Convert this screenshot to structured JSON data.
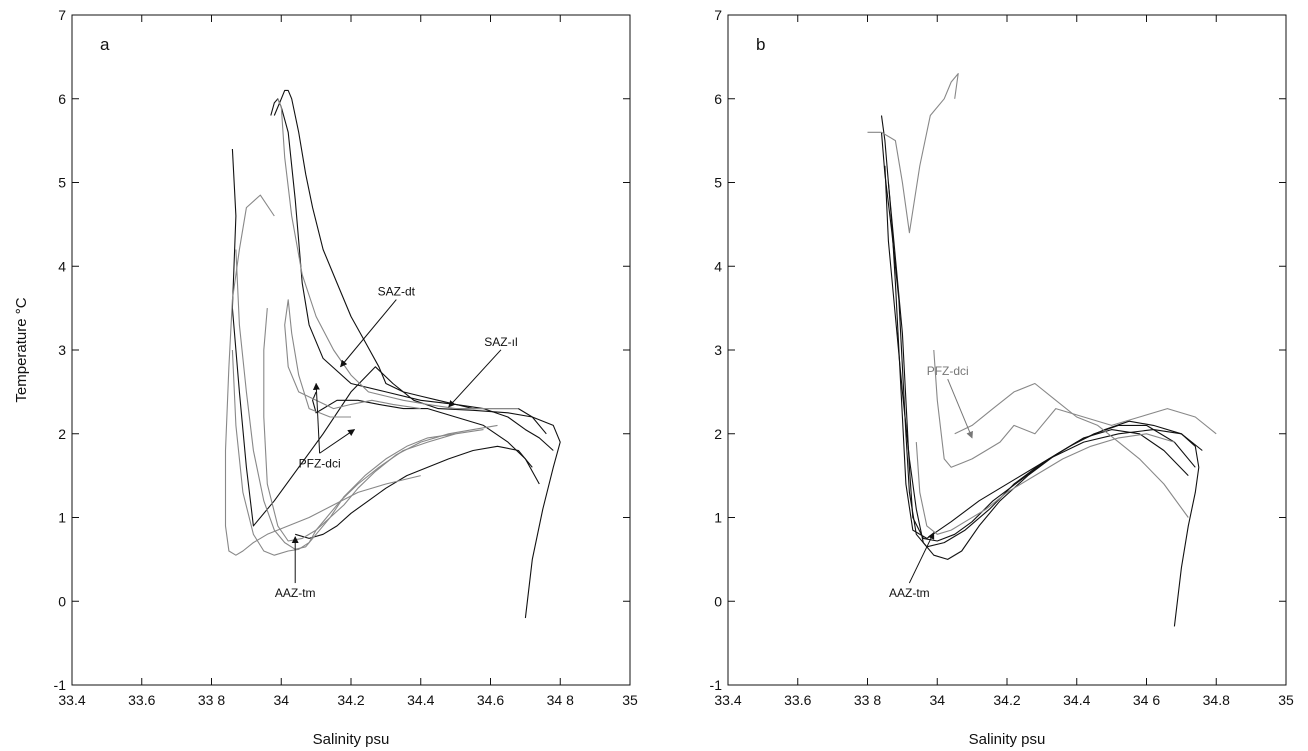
{
  "chart_data": [
    {
      "type": "line",
      "panel": "a",
      "xlabel": "Salinity psu",
      "ylabel": "Temperature °C",
      "xlim": [
        33.4,
        35
      ],
      "ylim": [
        -1,
        7
      ],
      "x_ticks": [
        33.4,
        33.6,
        33.8,
        34,
        34.2,
        34.4,
        34.6,
        34.8,
        35
      ],
      "x_tick_labels": [
        "33.4",
        "33.6",
        "33 8",
        "34",
        "34.2",
        "34.4",
        "34.6",
        "34 8",
        "35"
      ],
      "y_ticks": [
        -1,
        0,
        1,
        2,
        3,
        4,
        5,
        6,
        7
      ],
      "y_tick_labels": [
        "-1",
        "0",
        "1",
        "2",
        "3",
        "4",
        "5",
        "6",
        "7"
      ],
      "grid": false,
      "series": [
        {
          "color": "#111111",
          "x": [
            34.7,
            34.72,
            34.75,
            34.78,
            34.8,
            34.78,
            34.72,
            34.65,
            34.55,
            34.45,
            34.38,
            34.32,
            34.27,
            34.2,
            34.12,
            34.05,
            33.98,
            33.92,
            33.9,
            33.88,
            33.86,
            33.87,
            33.86
          ],
          "y": [
            -0.2,
            0.5,
            1.1,
            1.6,
            1.9,
            2.1,
            2.2,
            2.25,
            2.28,
            2.3,
            2.4,
            2.6,
            2.8,
            2.5,
            2.0,
            1.6,
            1.2,
            0.9,
            1.6,
            2.5,
            3.5,
            4.6,
            5.4
          ]
        },
        {
          "color": "#111111",
          "x": [
            34.76,
            34.72,
            34.68,
            34.62,
            34.55,
            34.5,
            34.45,
            34.4,
            34.35,
            34.3,
            34.28,
            34.24,
            34.2,
            34.16,
            34.12,
            34.09,
            34.07,
            34.05,
            34.03,
            34.02,
            34.01,
            34.0,
            33.99,
            33.98
          ],
          "y": [
            2.0,
            2.2,
            2.3,
            2.3,
            2.3,
            2.35,
            2.4,
            2.45,
            2.5,
            2.6,
            2.8,
            3.1,
            3.4,
            3.8,
            4.2,
            4.7,
            5.1,
            5.6,
            6.0,
            6.1,
            6.1,
            6.0,
            5.9,
            5.8
          ]
        },
        {
          "color": "#111111",
          "x": [
            34.78,
            34.74,
            34.7,
            34.65,
            34.58,
            34.5,
            34.4,
            34.3,
            34.2,
            34.12,
            34.08,
            34.06,
            34.05,
            34.04,
            34.03,
            34.02,
            34.0,
            33.99,
            33.98,
            33.97
          ],
          "y": [
            1.8,
            1.95,
            2.05,
            2.2,
            2.3,
            2.35,
            2.4,
            2.5,
            2.6,
            2.9,
            3.3,
            3.8,
            4.3,
            4.8,
            5.2,
            5.6,
            5.9,
            6.0,
            5.95,
            5.8
          ]
        },
        {
          "color": "#111111",
          "x": [
            34.74,
            34.7,
            34.65,
            34.58,
            34.5,
            34.42,
            34.35,
            34.28,
            34.22,
            34.16,
            34.12,
            34.1,
            34.09,
            34.1
          ],
          "y": [
            1.4,
            1.7,
            1.9,
            2.1,
            2.2,
            2.3,
            2.3,
            2.35,
            2.4,
            2.4,
            2.3,
            2.25,
            2.4,
            2.5
          ]
        },
        {
          "color": "#111111",
          "x": [
            34.72,
            34.68,
            34.62,
            34.55,
            34.48,
            34.42,
            34.36,
            34.3,
            34.25,
            34.2,
            34.16,
            34.12,
            34.08,
            34.04
          ],
          "y": [
            1.6,
            1.8,
            1.85,
            1.8,
            1.7,
            1.6,
            1.5,
            1.35,
            1.2,
            1.05,
            0.9,
            0.8,
            0.75,
            0.8
          ]
        },
        {
          "color": "#888888",
          "x": [
            34.68,
            34.6,
            34.5,
            34.42,
            34.35,
            34.3,
            34.25,
            34.2,
            34.15,
            34.1,
            34.06,
            34.03,
            34.01,
            34.0,
            33.99
          ],
          "y": [
            2.3,
            2.3,
            2.3,
            2.35,
            2.4,
            2.45,
            2.5,
            2.7,
            3.0,
            3.4,
            3.9,
            4.6,
            5.3,
            5.9,
            6.0
          ]
        },
        {
          "color": "#888888",
          "x": [
            34.62,
            34.55,
            34.48,
            34.4,
            34.33,
            34.27,
            34.22,
            34.18,
            34.14,
            34.1,
            34.06,
            34.02,
            33.99,
            33.96,
            33.95,
            33.95,
            33.96
          ],
          "y": [
            2.1,
            2.05,
            2.0,
            1.9,
            1.75,
            1.55,
            1.35,
            1.15,
            1.0,
            0.85,
            0.75,
            0.72,
            0.9,
            1.4,
            2.2,
            3.0,
            3.5
          ]
        },
        {
          "color": "#888888",
          "x": [
            34.58,
            34.5,
            34.42,
            34.36,
            34.3,
            34.24,
            34.18,
            34.14,
            34.1,
            34.07,
            34.04,
            34.01,
            33.98,
            33.95,
            33.92,
            33.9,
            33.88,
            33.87
          ],
          "y": [
            2.05,
            2.0,
            1.95,
            1.85,
            1.7,
            1.5,
            1.25,
            1.0,
            0.8,
            0.65,
            0.62,
            0.7,
            0.85,
            1.2,
            1.8,
            2.5,
            3.3,
            4.2
          ]
        },
        {
          "color": "#888888",
          "x": [
            34.5,
            34.42,
            34.35,
            34.28,
            34.22,
            34.17,
            34.13,
            34.1,
            34.08,
            34.05,
            34.02,
            33.98,
            33.95,
            33.92,
            33.89,
            33.87,
            33.86
          ],
          "y": [
            2.0,
            1.9,
            1.8,
            1.6,
            1.4,
            1.2,
            1.0,
            0.85,
            0.7,
            0.62,
            0.6,
            0.55,
            0.6,
            0.8,
            1.3,
            2.1,
            3.0
          ]
        },
        {
          "color": "#888888",
          "x": [
            34.4,
            34.3,
            34.22,
            34.15,
            34.08,
            34.02,
            33.96,
            33.92,
            33.89,
            33.87,
            33.85,
            33.84,
            33.84,
            33.85,
            33.86,
            33.88,
            33.9,
            33.94,
            33.98
          ],
          "y": [
            1.5,
            1.4,
            1.3,
            1.15,
            1.0,
            0.9,
            0.8,
            0.7,
            0.6,
            0.55,
            0.6,
            0.9,
            1.8,
            2.8,
            3.6,
            4.2,
            4.7,
            4.85,
            4.6
          ]
        },
        {
          "color": "#888888",
          "x": [
            34.2,
            34.14,
            34.08,
            34.05,
            34.03,
            34.02,
            34.01,
            34.02,
            34.05,
            34.1,
            34.15,
            34.2,
            34.26,
            34.32,
            34.4
          ],
          "y": [
            2.2,
            2.2,
            2.3,
            2.7,
            3.2,
            3.6,
            3.3,
            2.8,
            2.5,
            2.4,
            2.3,
            2.35,
            2.4,
            2.35,
            2.3
          ]
        }
      ],
      "annotations": [
        {
          "text": "SAZ-dt",
          "arrow_to": [
            34.17,
            2.8
          ],
          "label_at": [
            34.33,
            3.65
          ],
          "color": "#111111"
        },
        {
          "text": "SAZ-ıl",
          "arrow_to": [
            34.48,
            2.32
          ],
          "label_at": [
            34.63,
            3.05
          ],
          "color": "#111111"
        },
        {
          "text": "PFZ-dci",
          "arrow_to": [
            34.1,
            2.6
          ],
          "arrow2_to": [
            34.21,
            2.05
          ],
          "label_at": [
            34.11,
            1.6
          ],
          "color": "#111111"
        },
        {
          "text": "AAZ-tm",
          "arrow_to": [
            34.04,
            0.77
          ],
          "label_at": [
            34.04,
            0.05
          ],
          "color": "#111111"
        }
      ]
    },
    {
      "type": "line",
      "panel": "b",
      "xlabel": "Salinity psu",
      "ylabel": "",
      "xlim": [
        33.4,
        35
      ],
      "ylim": [
        -1,
        7
      ],
      "x_ticks": [
        33.4,
        33.6,
        33.8,
        34,
        34.2,
        34.4,
        34.6,
        34.8,
        35
      ],
      "x_tick_labels": [
        "33.4",
        "33.6",
        "33 8",
        "34",
        "34.2",
        "34.4",
        "34 6",
        "34.8",
        "35"
      ],
      "y_ticks": [
        -1,
        0,
        1,
        2,
        3,
        4,
        5,
        6,
        7
      ],
      "y_tick_labels": [
        "-1",
        "0",
        "1",
        "2",
        "3",
        "4",
        "5",
        "6",
        "7"
      ],
      "grid": false,
      "series": [
        {
          "color": "#111111",
          "x": [
            34.68,
            34.7,
            34.72,
            34.74,
            34.75,
            34.74,
            34.7,
            34.62,
            34.52,
            34.42,
            34.32,
            34.22,
            34.12,
            34.04,
            33.97,
            33.93,
            33.91,
            33.9,
            33.89,
            33.88,
            33.87,
            33.86,
            33.85,
            33.84
          ],
          "y": [
            -0.3,
            0.4,
            0.9,
            1.3,
            1.6,
            1.85,
            2.0,
            2.05,
            2.0,
            1.9,
            1.7,
            1.45,
            1.2,
            0.95,
            0.75,
            0.85,
            1.4,
            2.2,
            3.0,
            3.8,
            4.5,
            5.0,
            5.5,
            5.8
          ]
        },
        {
          "color": "#111111",
          "x": [
            34.74,
            34.68,
            34.6,
            34.52,
            34.45,
            34.38,
            34.3,
            34.22,
            34.15,
            34.08,
            34.02,
            33.97,
            33.94,
            33.92,
            33.91,
            33.9,
            33.89,
            33.87,
            33.85,
            33.84
          ],
          "y": [
            1.6,
            1.9,
            2.1,
            2.1,
            2.0,
            1.85,
            1.65,
            1.4,
            1.1,
            0.85,
            0.7,
            0.65,
            0.8,
            1.3,
            2.0,
            2.8,
            3.6,
            4.4,
            5.1,
            5.6
          ]
        },
        {
          "color": "#111111",
          "x": [
            34.72,
            34.65,
            34.58,
            34.5,
            34.42,
            34.34,
            34.26,
            34.18,
            34.12,
            34.07,
            34.03,
            33.99,
            33.96,
            33.94,
            33.92,
            33.9,
            33.88,
            33.86,
            33.85
          ],
          "y": [
            1.5,
            1.8,
            2.0,
            2.05,
            1.95,
            1.75,
            1.5,
            1.2,
            0.9,
            0.6,
            0.5,
            0.55,
            0.7,
            1.1,
            1.7,
            2.5,
            3.4,
            4.3,
            5.2
          ]
        },
        {
          "color": "#111111",
          "x": [
            34.76,
            34.7,
            34.62,
            34.55,
            34.48,
            34.4,
            34.32,
            34.24,
            34.16,
            34.1,
            34.05,
            34.0,
            33.96,
            33.93,
            33.92,
            33.91,
            33.9,
            33.88,
            33.86
          ],
          "y": [
            1.8,
            2.0,
            2.1,
            2.15,
            2.05,
            1.9,
            1.7,
            1.45,
            1.2,
            0.95,
            0.8,
            0.72,
            0.75,
            1.0,
            1.6,
            2.4,
            3.2,
            4.1,
            5.0
          ]
        },
        {
          "color": "#888888",
          "x": [
            34.8,
            34.74,
            34.66,
            34.58,
            34.5,
            34.42,
            34.34,
            34.28,
            34.22,
            34.18,
            34.14,
            34.1,
            34.07,
            34.04,
            34.02,
            34.0,
            33.99
          ],
          "y": [
            2.0,
            2.2,
            2.3,
            2.2,
            2.1,
            2.2,
            2.3,
            2.0,
            2.1,
            1.9,
            1.8,
            1.7,
            1.65,
            1.6,
            1.7,
            2.4,
            3.0
          ]
        },
        {
          "color": "#888888",
          "x": [
            34.72,
            34.65,
            34.58,
            34.52,
            34.46,
            34.4,
            34.34,
            34.28,
            34.22,
            34.16,
            34.1,
            34.05
          ],
          "y": [
            1.0,
            1.4,
            1.7,
            1.9,
            2.1,
            2.2,
            2.4,
            2.6,
            2.5,
            2.3,
            2.1,
            2.0
          ]
        },
        {
          "color": "#888888",
          "x": [
            33.8,
            33.84,
            33.88,
            33.9,
            33.92,
            33.95,
            33.98,
            34.02,
            34.04,
            34.06,
            34.05
          ],
          "y": [
            5.6,
            5.6,
            5.5,
            5.0,
            4.4,
            5.2,
            5.8,
            6.0,
            6.2,
            6.3,
            6.0
          ]
        },
        {
          "color": "#888888",
          "x": [
            34.68,
            34.6,
            34.52,
            34.44,
            34.36,
            34.28,
            34.2,
            34.14,
            34.08,
            34.04,
            34.0,
            33.97,
            33.95,
            33.94
          ],
          "y": [
            1.9,
            2.0,
            1.95,
            1.85,
            1.7,
            1.5,
            1.3,
            1.1,
            0.95,
            0.85,
            0.8,
            0.9,
            1.3,
            1.9
          ]
        }
      ],
      "annotations": [
        {
          "text": "PFZ-dci",
          "arrow_to": [
            34.1,
            1.95
          ],
          "label_at": [
            34.03,
            2.7
          ],
          "color": "#777777"
        },
        {
          "text": "AAZ-tm",
          "arrow_to": [
            33.99,
            0.82
          ],
          "label_at": [
            33.92,
            0.05
          ],
          "color": "#111111"
        }
      ]
    }
  ],
  "panels": [
    {
      "letter": "a",
      "xlabel": "Salinity psu",
      "ylabel": "Temperature °C"
    },
    {
      "letter": "b",
      "xlabel": "Salinity psu",
      "ylabel": ""
    }
  ]
}
